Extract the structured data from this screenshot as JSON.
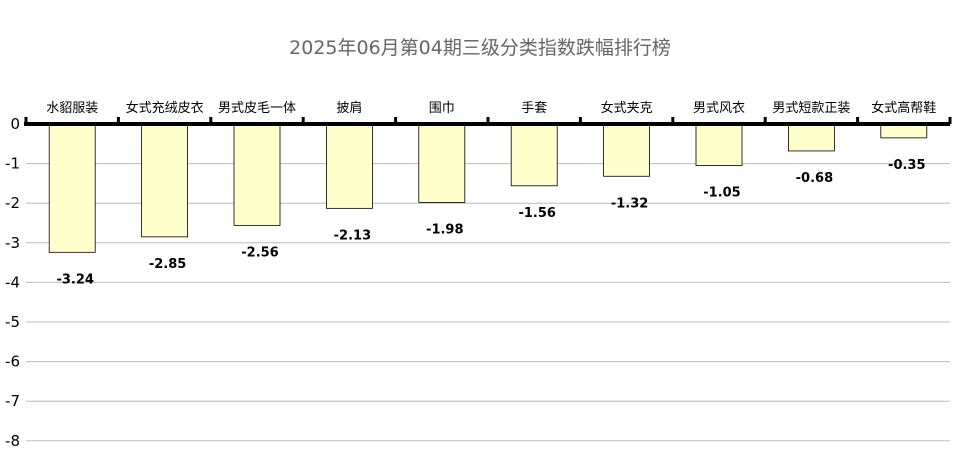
{
  "chart_data": {
    "type": "bar",
    "title": "2025年06月第04期三级分类指数跌幅排行榜",
    "categories": [
      "水貂服装",
      "女式充绒皮衣",
      "男式皮毛一体",
      "披肩",
      "围巾",
      "手套",
      "女式夹克",
      "男式风衣",
      "男式短款正装",
      "女式高帮鞋"
    ],
    "values": [
      -3.24,
      -2.85,
      -2.56,
      -2.13,
      -1.98,
      -1.56,
      -1.32,
      -1.05,
      -0.68,
      -0.35
    ],
    "value_labels": [
      "-3.24",
      "-2.85",
      "-2.56",
      "-2.13",
      "-1.98",
      "-1.56",
      "-1.32",
      "-1.05",
      "-0.68",
      "-0.35"
    ],
    "ylim": [
      -8,
      0
    ],
    "yticks": [
      "0",
      "-1",
      "-2",
      "-3",
      "-4",
      "-5",
      "-6",
      "-7",
      "-8"
    ],
    "grid": true,
    "xlabel": "",
    "ylabel": "",
    "colors": {
      "bar_fill": "#ffffcc",
      "bar_stroke": "#000000",
      "grid": "#bbbbbb",
      "axis": "#000000",
      "title": "#666666"
    }
  }
}
